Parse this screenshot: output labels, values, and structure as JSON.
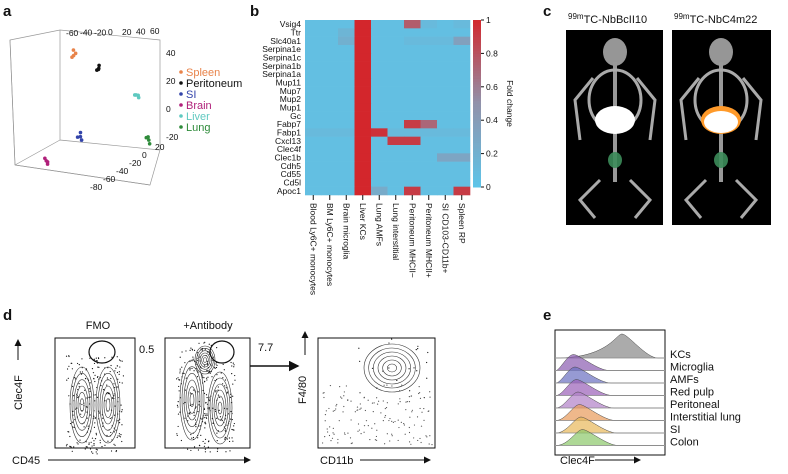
{
  "panel_labels": [
    "a",
    "b",
    "c",
    "d",
    "e"
  ],
  "panel_a": {
    "legend": [
      {
        "name": "Spleen",
        "color": "#e8834a"
      },
      {
        "name": "Peritoneum",
        "color": "#111111"
      },
      {
        "name": "SI",
        "color": "#3344aa"
      },
      {
        "name": "Brain",
        "color": "#b0207a"
      },
      {
        "name": "Liver",
        "color": "#5fc9c0"
      },
      {
        "name": "Lung",
        "color": "#2e8b3a"
      }
    ],
    "top_ticks": [
      "-60",
      "-40",
      "-20",
      "0",
      "20",
      "40",
      "60"
    ],
    "right_ticks": [
      "40",
      "20",
      "0",
      "-20"
    ],
    "bottom_ticks": [
      "-80",
      "-60",
      "-40",
      "-20",
      "0",
      "20"
    ]
  },
  "panel_b": {
    "rows": [
      "Vsig4",
      "Ttr",
      "Slc40a1",
      "Serpina1e",
      "Serpina1c",
      "Serpina1b",
      "Serpina1a",
      "Mup11",
      "Mup7",
      "Mup2",
      "Mup1",
      "Gc",
      "Fabp7",
      "Fabp1",
      "Cxcl13",
      "Clec4f",
      "Clec1b",
      "Cdh5",
      "Cd55",
      "Cd5l",
      "Apoc1"
    ],
    "columns": [
      "Blood Ly6C+ monocytes",
      "BM Ly6C+ monocytes",
      "Brain microglia",
      "Liver KCs",
      "Lung AMFs",
      "Lung interstitial",
      "Peritoneum MHCII−",
      "Peritoneum MHCII+",
      "SI CD103-CD11b+",
      "Spleen RP"
    ],
    "values": [
      [
        0.05,
        0.05,
        0.05,
        1,
        0.05,
        0.05,
        0.75,
        0.1,
        0.05,
        0.1
      ],
      [
        0.05,
        0.05,
        0.15,
        1,
        0.05,
        0.05,
        0.05,
        0.05,
        0.05,
        0.05
      ],
      [
        0.05,
        0.05,
        0.2,
        1,
        0.05,
        0.05,
        0.1,
        0.1,
        0.1,
        0.35
      ],
      [
        0.05,
        0.05,
        0.05,
        1,
        0.05,
        0.05,
        0.05,
        0.05,
        0.05,
        0.05
      ],
      [
        0.05,
        0.05,
        0.05,
        1,
        0.05,
        0.05,
        0.05,
        0.05,
        0.05,
        0.05
      ],
      [
        0.05,
        0.05,
        0.05,
        1,
        0.05,
        0.05,
        0.05,
        0.05,
        0.05,
        0.05
      ],
      [
        0.05,
        0.05,
        0.05,
        1,
        0.05,
        0.05,
        0.05,
        0.05,
        0.05,
        0.05
      ],
      [
        0.05,
        0.05,
        0.05,
        1,
        0.05,
        0.05,
        0.05,
        0.05,
        0.05,
        0.05
      ],
      [
        0.05,
        0.05,
        0.05,
        1,
        0.05,
        0.05,
        0.05,
        0.05,
        0.05,
        0.05
      ],
      [
        0.05,
        0.05,
        0.05,
        1,
        0.05,
        0.05,
        0.05,
        0.05,
        0.05,
        0.05
      ],
      [
        0.05,
        0.05,
        0.05,
        1,
        0.05,
        0.05,
        0.05,
        0.05,
        0.05,
        0.05
      ],
      [
        0.05,
        0.05,
        0.05,
        1,
        0.05,
        0.05,
        0.05,
        0.05,
        0.05,
        0.05
      ],
      [
        0.05,
        0.05,
        0.05,
        1,
        0.05,
        0.05,
        0.9,
        0.7,
        0.05,
        0.05
      ],
      [
        0.1,
        0.1,
        0.1,
        1,
        0.95,
        0.1,
        0.1,
        0.1,
        0.1,
        0.1
      ],
      [
        0.05,
        0.05,
        0.05,
        1,
        0.05,
        0.9,
        0.9,
        0.05,
        0.05,
        0.05
      ],
      [
        0.05,
        0.05,
        0.05,
        1,
        0.05,
        0.05,
        0.05,
        0.05,
        0.05,
        0.05
      ],
      [
        0.05,
        0.05,
        0.05,
        1,
        0.05,
        0.05,
        0.05,
        0.05,
        0.3,
        0.3
      ],
      [
        0.05,
        0.05,
        0.05,
        1,
        0.05,
        0.05,
        0.05,
        0.05,
        0.05,
        0.05
      ],
      [
        0.05,
        0.05,
        0.05,
        1,
        0.05,
        0.05,
        0.05,
        0.05,
        0.05,
        0.05
      ],
      [
        0.05,
        0.05,
        0.05,
        1,
        0.05,
        0.05,
        0.05,
        0.05,
        0.05,
        0.05
      ],
      [
        0.05,
        0.05,
        0.05,
        1,
        0.25,
        0.05,
        0.9,
        0.05,
        0.05,
        0.9
      ]
    ],
    "colormap": [
      "#5ec4e8",
      "#9191aa",
      "#d3262c"
    ],
    "colorbar_lim": [
      0,
      1
    ],
    "colorbar_ticks": [
      0,
      0.2,
      0.4,
      0.6,
      0.8,
      1
    ],
    "colorbar_label": "Fold change"
  },
  "panel_c": {
    "images": [
      {
        "isotope": "99m",
        "name": "TC-NbBcII10"
      },
      {
        "isotope": "99m",
        "name": "TC-NbC4m22"
      }
    ]
  },
  "panel_d": {
    "titles": [
      "FMO",
      "+Antibody"
    ],
    "gates": [
      "0.5",
      "7.7"
    ],
    "y_label": "Clec4F",
    "x_label": "CD45",
    "y_label_2": "F4/80",
    "x_label_2": "CD11b"
  },
  "panel_e": {
    "populations": [
      "KCs",
      "Microglia",
      "AMFs",
      "Red pulp",
      "Peritoneal",
      "Interstitial lung",
      "SI",
      "Colon"
    ],
    "x_label": "Clec4F"
  }
}
